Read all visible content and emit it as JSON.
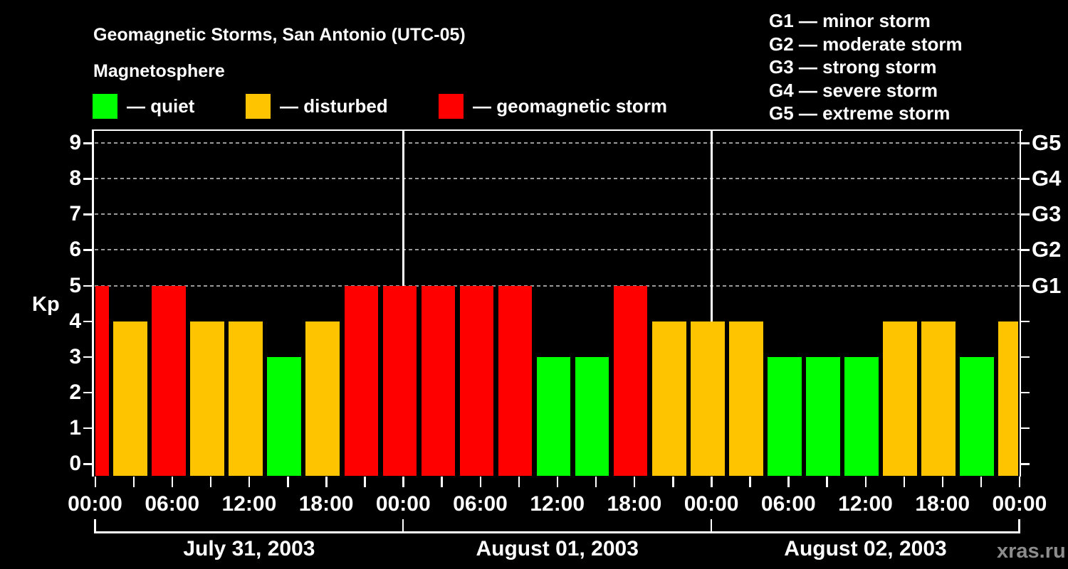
{
  "header": {
    "title": "Geomagnetic Storms, San Antonio (UTC-05)",
    "subtitle": "Magnetosphere"
  },
  "legend": {
    "items": [
      {
        "key": "quiet",
        "color": "#00ff00",
        "label": "— quiet"
      },
      {
        "key": "disturbed",
        "color": "#ffc400",
        "label": "— disturbed"
      },
      {
        "key": "storm",
        "color": "#ff0000",
        "label": "— geomagnetic storm"
      }
    ]
  },
  "storm_legend": {
    "lines": [
      {
        "code": "G1",
        "label": "minor storm"
      },
      {
        "code": "G2",
        "label": "moderate storm"
      },
      {
        "code": "G3",
        "label": "strong storm"
      },
      {
        "code": "G4",
        "label": "severe storm"
      },
      {
        "code": "G5",
        "label": "extreme storm"
      }
    ],
    "separator": "—"
  },
  "watermark": "xras.ru",
  "chart_data": {
    "type": "bar",
    "title": "Geomagnetic Storms, San Antonio (UTC-05)",
    "ylabel": "Kp",
    "ylim": [
      0,
      9
    ],
    "y_ticks": [
      0,
      1,
      2,
      3,
      4,
      5,
      6,
      7,
      8,
      9
    ],
    "gridlines_at_kp": [
      5,
      6,
      7,
      8,
      9
    ],
    "g_scale_labels": {
      "5": "G1",
      "6": "G2",
      "7": "G3",
      "8": "G4",
      "9": "G5"
    },
    "x_time_label_cycle": [
      "00:00",
      "06:00",
      "12:00",
      "18:00"
    ],
    "x_minor_tick_hours": 3,
    "days": [
      "July 31, 2003",
      "August 01, 2003",
      "August 02, 2003"
    ],
    "bar_period_hours": 3,
    "kp_values": [
      5,
      4,
      5,
      4,
      4,
      3,
      4,
      5,
      5,
      5,
      5,
      5,
      3,
      3,
      5,
      4,
      4,
      4,
      3,
      3,
      3,
      4,
      4,
      3,
      4
    ],
    "bar_status": [
      "storm",
      "disturbed",
      "storm",
      "disturbed",
      "disturbed",
      "quiet",
      "disturbed",
      "storm",
      "storm",
      "storm",
      "storm",
      "storm",
      "quiet",
      "quiet",
      "storm",
      "disturbed",
      "disturbed",
      "disturbed",
      "quiet",
      "quiet",
      "quiet",
      "disturbed",
      "disturbed",
      "quiet",
      "disturbed"
    ],
    "status_colors": {
      "quiet": "#00ff00",
      "disturbed": "#ffc400",
      "storm": "#ff0000"
    },
    "kp_thresholds": {
      "quiet_max": 3,
      "disturbed": 4,
      "storm_min": 5
    },
    "first_bar_clipped": true,
    "last_bar_clipped": true,
    "legend_position": "top-left",
    "grid": "dashed horizontal at storm levels only"
  }
}
